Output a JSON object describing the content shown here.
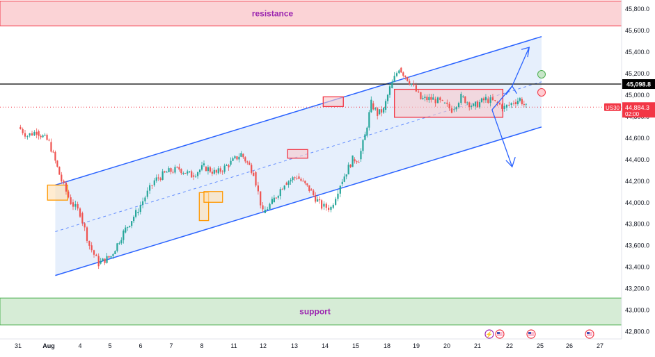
{
  "symbol": "US30",
  "chart_data": {
    "type": "line",
    "title": "",
    "xlabel": "",
    "ylabel": "",
    "ylim": [
      42730,
      45880
    ],
    "grid": false,
    "y_ticks": [
      "45,800.0",
      "45,600.0",
      "45,400.0",
      "45,200.0",
      "45,000.0",
      "44,800.0",
      "44,600.0",
      "44,400.0",
      "44,200.0",
      "44,000.0",
      "43,800.0",
      "43,600.0",
      "43,400.0",
      "43,200.0",
      "43,000.0",
      "42,800.0"
    ],
    "x_ticks": [
      "31",
      "Aug",
      "4",
      "5",
      "6",
      "7",
      "8",
      "11",
      "12",
      "13",
      "14",
      "15",
      "18",
      "19",
      "20",
      "21",
      "22",
      "25",
      "26",
      "27"
    ],
    "series": [
      {
        "x": [
          0,
          0.3,
          0.6,
          1.0,
          1.4,
          1.7,
          2.0,
          2.3,
          2.6,
          3.0,
          3.4,
          3.8,
          4.1,
          4.4,
          4.8,
          5.2,
          5.6,
          6.0,
          6.4,
          6.8,
          7.2,
          7.6,
          7.9,
          8.2,
          8.6,
          9.0,
          9.4,
          9.8,
          10.1,
          10.4,
          10.8,
          11.0,
          11.2,
          11.4,
          11.6,
          11.8,
          12.0,
          12.3,
          12.7,
          13.0,
          13.4,
          13.7,
          14.0,
          14.3,
          14.7,
          15.1,
          15.4,
          15.7,
          16.0,
          16.2,
          16.4
        ],
        "y": [
          44700,
          44620,
          44660,
          44560,
          44200,
          44000,
          43900,
          43600,
          43430,
          43500,
          43720,
          43900,
          44050,
          44200,
          44280,
          44310,
          44250,
          44330,
          44270,
          44350,
          44450,
          44280,
          43900,
          44000,
          44180,
          44240,
          44120,
          43960,
          43950,
          44170,
          44400,
          44400,
          44620,
          44920,
          44820,
          44860,
          45060,
          45250,
          45100,
          44960,
          44960,
          44920,
          44860,
          44980,
          44890,
          44960,
          44930,
          44880,
          44930,
          44960,
          44885
        ]
      }
    ],
    "last_price": "44,884.3",
    "last_price_countdown": "02:00",
    "marked_level": "45,098.8",
    "resistance_zone": {
      "label": "resistance",
      "from": 45640,
      "to": 45870
    },
    "support_zone": {
      "label": "support",
      "from": 42860,
      "to": 43110
    },
    "channel": {
      "upper": [
        [
          1.2,
          44160
        ],
        [
          16.9,
          45540
        ]
      ],
      "lower": [
        [
          1.2,
          43320
        ],
        [
          16.9,
          44700
        ]
      ]
    },
    "colors": {
      "up_candle": "#26a69a",
      "down_candle": "#ef5350",
      "channel_line": "#2962ff",
      "channel_fill": "#e3edfc",
      "resistance_fill": "#fbd3d6",
      "resistance_border": "#f23645",
      "support_fill": "#d6ecd6",
      "support_border": "#4caf50",
      "zone_label": "#9c27b0",
      "price_tag": "#f23645",
      "level_line": "#000000"
    },
    "event_icons": [
      "lightning-icon",
      "us-flag-icon",
      "us-flag-icon",
      "us-flag-icon"
    ]
  }
}
